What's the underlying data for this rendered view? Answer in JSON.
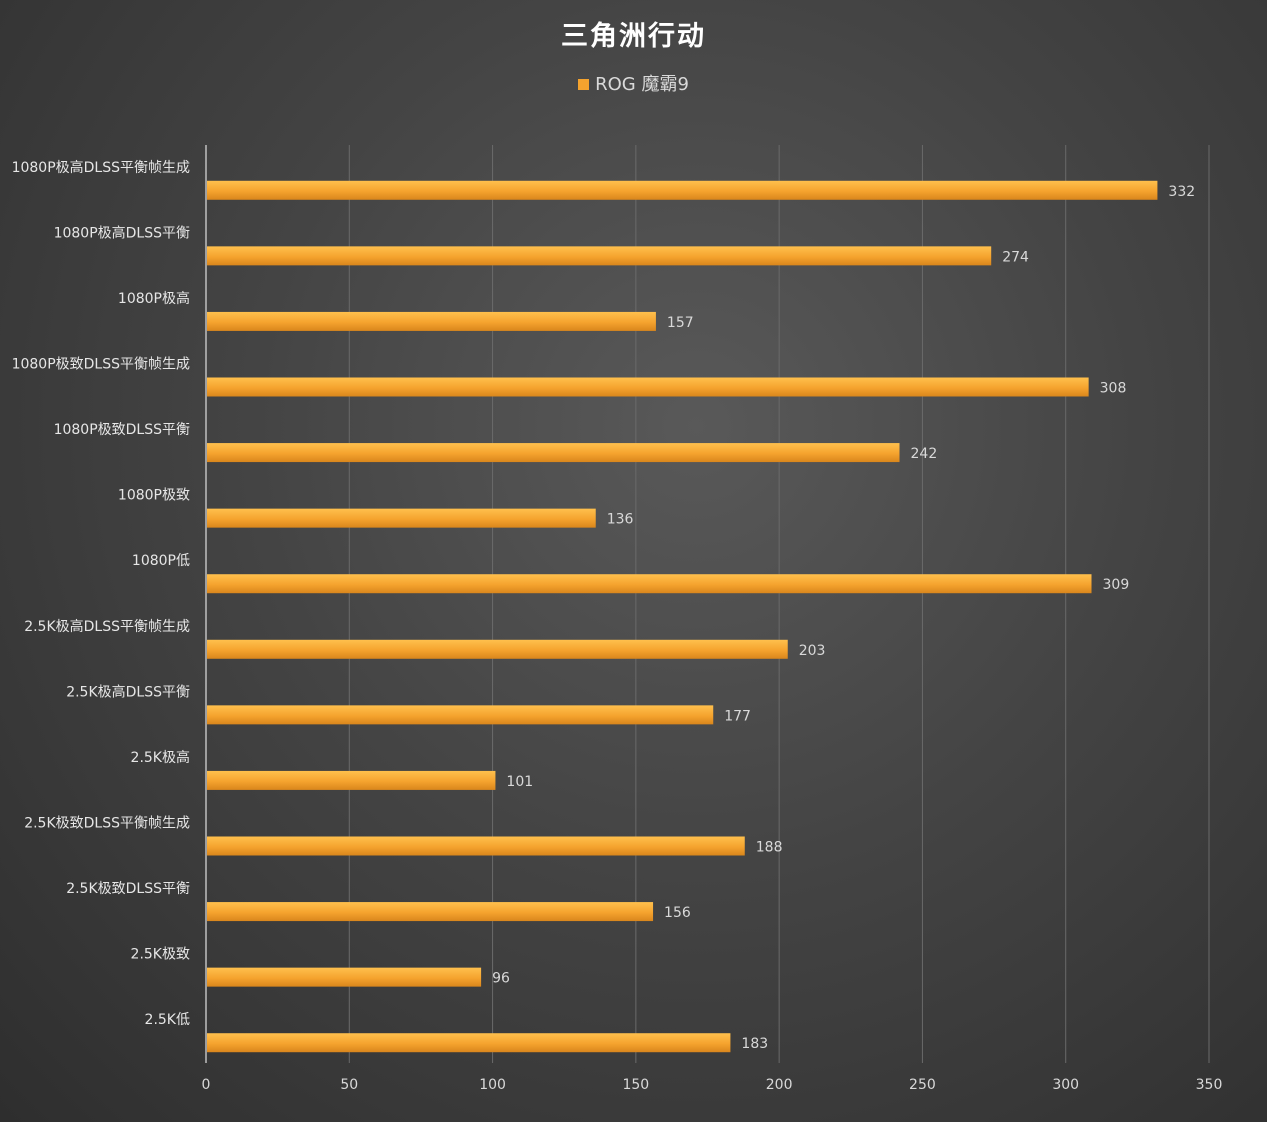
{
  "chart_data": {
    "type": "bar",
    "orientation": "horizontal",
    "title": "三角洲行动",
    "xlabel": "",
    "ylabel": "",
    "xlim": [
      0,
      350
    ],
    "x_ticks": [
      0,
      50,
      100,
      150,
      200,
      250,
      300,
      350
    ],
    "grid": true,
    "legend_position": "top",
    "data_labels": true,
    "categories": [
      "1080P极高DLSS平衡帧生成",
      "1080P极高DLSS平衡",
      "1080P极高",
      "1080P极致DLSS平衡帧生成",
      "1080P极致DLSS平衡",
      "1080P极致",
      "1080P低",
      "2.5K极高DLSS平衡帧生成",
      "2.5K极高DLSS平衡",
      "2.5K极高",
      "2.5K极致DLSS平衡帧生成",
      "2.5K极致DLSS平衡",
      "2.5K极致",
      "2.5K低"
    ],
    "series": [
      {
        "name": "ROG 魔霸9",
        "color": "#F5A32E",
        "values": [
          332,
          274,
          157,
          308,
          242,
          136,
          309,
          203,
          177,
          101,
          188,
          156,
          96,
          183
        ]
      }
    ]
  }
}
